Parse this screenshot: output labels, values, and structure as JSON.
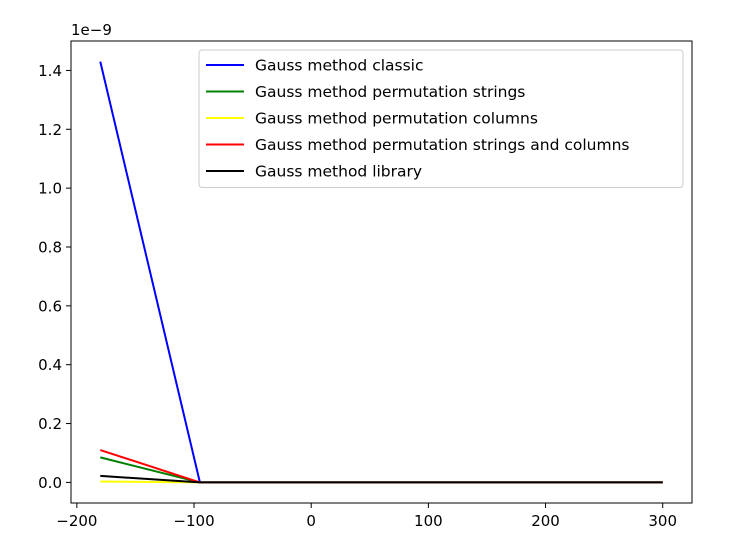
{
  "chart_data": {
    "type": "line",
    "title": "",
    "xlabel": "",
    "ylabel": "",
    "y_scale_label": "1e−9",
    "xlim": [
      -205,
      325
    ],
    "ylim": [
      -0.07,
      1.5
    ],
    "xticks": [
      -200,
      -100,
      0,
      100,
      200,
      300
    ],
    "xtick_labels": [
      "−200",
      "−100",
      "0",
      "100",
      "200",
      "300"
    ],
    "yticks": [
      0.0,
      0.2,
      0.4,
      0.6,
      0.8,
      1.0,
      1.2,
      1.4
    ],
    "ytick_labels": [
      "0.0",
      "0.2",
      "0.4",
      "0.6",
      "0.8",
      "1.0",
      "1.2",
      "1.4"
    ],
    "grid": false,
    "legend_position": "top-right",
    "x": [
      -180,
      -95,
      -75,
      0,
      100,
      200,
      300
    ],
    "series": [
      {
        "name": "Gauss method classic",
        "color": "#0000ff",
        "values": [
          1.43,
          0.0,
          0.0,
          0.0,
          0.0,
          0.0,
          0.0
        ]
      },
      {
        "name": "Gauss method permutation strings",
        "color": "#008000",
        "values": [
          0.085,
          0.0,
          0.0,
          0.0,
          0.0,
          0.0,
          0.0
        ]
      },
      {
        "name": "Gauss method permutation columns",
        "color": "#ffff00",
        "values": [
          0.003,
          0.0,
          0.0,
          0.0,
          0.0,
          0.0,
          0.0
        ]
      },
      {
        "name": "Gauss method permutation strings and columns",
        "color": "#ff0000",
        "values": [
          0.11,
          0.0,
          0.0,
          0.0,
          0.0,
          0.0,
          0.0
        ]
      },
      {
        "name": "Gauss method library",
        "color": "#000000",
        "values": [
          0.022,
          0.0,
          0.0,
          0.0,
          0.0,
          0.0,
          0.0
        ]
      }
    ]
  }
}
